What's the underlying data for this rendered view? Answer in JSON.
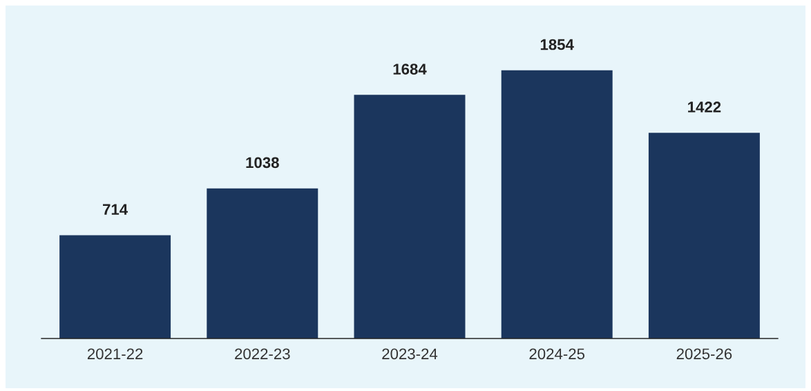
{
  "chart_data": {
    "type": "bar",
    "categories": [
      "2021-22",
      "2022-23",
      "2023-24",
      "2024-25",
      "2025-26"
    ],
    "values": [
      714,
      1038,
      1684,
      1854,
      1422
    ],
    "color": "#1b365d",
    "data_labels": true,
    "grid": false,
    "legend": false
  }
}
